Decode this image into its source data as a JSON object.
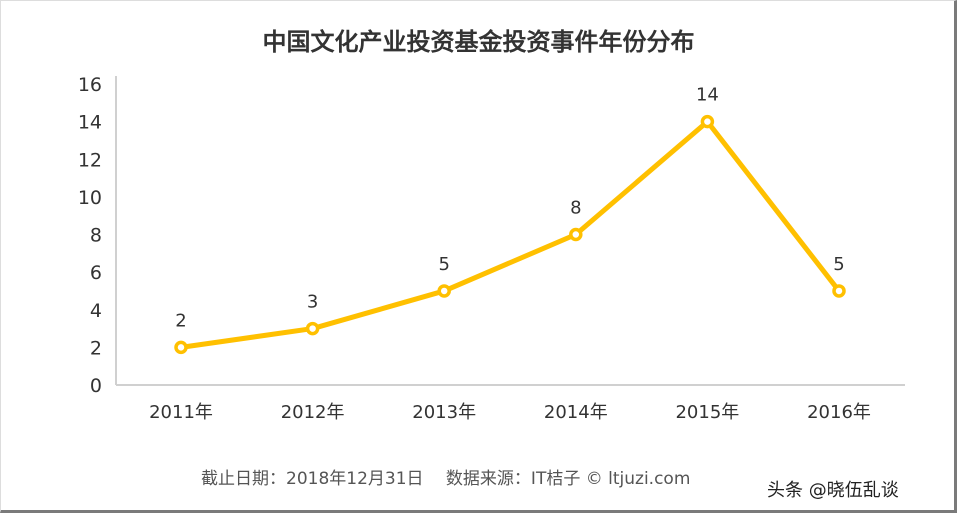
{
  "chart_data": {
    "type": "line",
    "title": "中国文化产业投资基金投资事件年份分布",
    "categories": [
      "2011年",
      "2012年",
      "2013年",
      "2014年",
      "2015年",
      "2016年"
    ],
    "values": [
      2,
      3,
      5,
      8,
      14,
      5
    ],
    "data_labels": [
      "2",
      "3",
      "5",
      "8",
      "14",
      "5"
    ],
    "ylim": [
      0,
      16
    ],
    "yticks": [
      "0",
      "2",
      "4",
      "6",
      "8",
      "10",
      "12",
      "14",
      "16"
    ],
    "grid": false,
    "line_color": "#FFC000"
  },
  "footer": "截止日期：2018年12月31日　 数据来源：IT桔子 © ltjuzi.com",
  "watermark": "头条 @晓伍乱谈"
}
